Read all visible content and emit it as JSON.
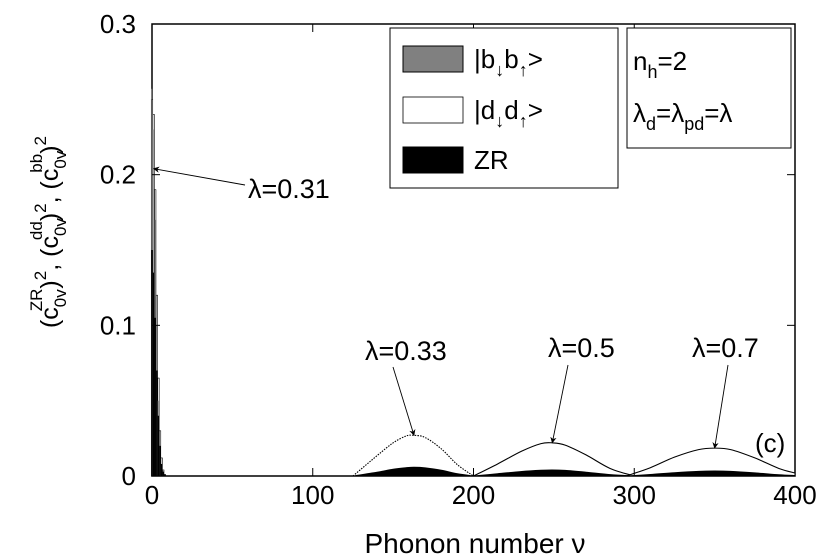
{
  "chart_data": {
    "type": "area",
    "xlabel": "Phonon number ν",
    "ylabel": "(c0v^ZR)^2, (c0v^dd)^2, (c0v^bb)^2",
    "xlim": [
      0,
      400
    ],
    "ylim": [
      0,
      0.3
    ],
    "x_ticks": [
      0,
      100,
      200,
      300,
      400
    ],
    "y_ticks": [
      {
        "value": 0,
        "label": "0"
      },
      {
        "value": 0.1,
        "label": "0.1"
      },
      {
        "value": 0.2,
        "label": "0.2"
      },
      {
        "value": 0.3,
        "label": "0.3"
      }
    ],
    "grid": false,
    "legend_position": "top-center",
    "series": [
      {
        "key": "bb",
        "name": "|b↓b↑>",
        "color": "#808080"
      },
      {
        "key": "dd",
        "name": "|d↓d↑>",
        "color": "#ffffff"
      },
      {
        "key": "zr",
        "name": "ZR",
        "color": "#000000"
      }
    ],
    "curves": [
      {
        "lambda_label": "λ=0.31",
        "x": [
          0,
          1,
          2,
          3,
          4,
          5,
          6,
          7,
          8
        ],
        "dd": [
          0.25,
          0.24,
          0.19,
          0.12,
          0.065,
          0.03,
          0.012,
          0.004,
          0.001
        ],
        "zr": [
          0.15,
          0.135,
          0.105,
          0.07,
          0.04,
          0.02,
          0.008,
          0.003,
          0.001
        ],
        "bb": [
          0.257,
          0.23,
          0.17,
          0.1,
          0.05,
          0.02,
          0.007,
          0.002,
          0
        ]
      },
      {
        "lambda_label": "λ=0.33",
        "x": [
          125,
          140,
          150,
          158,
          163,
          170,
          180,
          190,
          200
        ],
        "dd": [
          0.0,
          0.0135,
          0.022,
          0.0265,
          0.027,
          0.0255,
          0.018,
          0.0075,
          0.0
        ],
        "zr": [
          0.0,
          0.0025,
          0.0045,
          0.0055,
          0.0058,
          0.0054,
          0.0038,
          0.0015,
          0.0
        ]
      },
      {
        "lambda_label": "λ=0.5",
        "x": [
          200,
          215,
          230,
          242,
          249,
          257,
          270,
          285,
          300
        ],
        "dd": [
          0.0,
          0.008,
          0.0165,
          0.0215,
          0.022,
          0.0205,
          0.014,
          0.005,
          0.0
        ],
        "zr": [
          0.0,
          0.0015,
          0.003,
          0.0038,
          0.004,
          0.0037,
          0.0025,
          0.0009,
          0.0
        ]
      },
      {
        "lambda_label": "λ=0.7",
        "x": [
          295,
          310,
          325,
          340,
          350,
          360,
          375,
          390,
          400
        ],
        "dd": [
          0.0,
          0.0055,
          0.0125,
          0.0175,
          0.0185,
          0.0175,
          0.012,
          0.005,
          0.002
        ],
        "zr": [
          0.0,
          0.001,
          0.0022,
          0.0031,
          0.0033,
          0.0031,
          0.0021,
          0.0008,
          0.0003
        ]
      }
    ],
    "annotations": [
      {
        "text": "λ=0.31",
        "target_x": 1,
        "target_y": 0.204
      },
      {
        "text": "λ=0.33",
        "target_x": 163,
        "target_y": 0.027
      },
      {
        "text": "λ=0.5",
        "target_x": 249,
        "target_y": 0.022
      },
      {
        "text": "λ=0.7",
        "target_x": 350,
        "target_y": 0.0185
      }
    ],
    "panel_label": "(c)",
    "info_lines": [
      "n_h=2",
      "λ_d=λ_pd=λ"
    ]
  }
}
